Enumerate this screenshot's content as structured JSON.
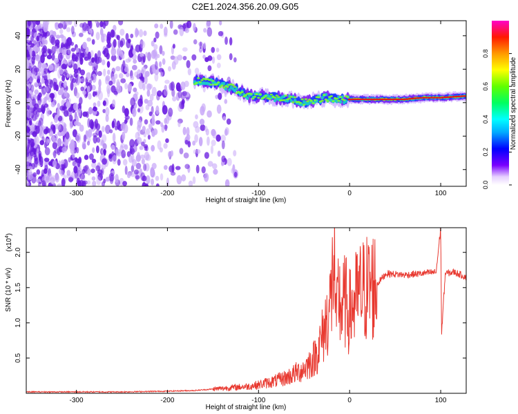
{
  "title": "C2E1.2024.356.20.09.G05",
  "chart_data": [
    {
      "type": "heatmap",
      "xlabel": "Height of straight line (km)",
      "ylabel": "Frequency (Hz)",
      "xlim": [
        -355,
        128
      ],
      "ylim": [
        -50,
        49
      ],
      "xticks": [
        -300,
        -200,
        -100,
        0,
        100
      ],
      "yticks": [
        -40,
        -20,
        0,
        20,
        40
      ],
      "colorbar": {
        "label": "Normalized spectral amplitude",
        "range": [
          0,
          1
        ],
        "ticks": [
          "0.0",
          "0.2",
          "0.4",
          "0.6",
          "0.8"
        ]
      },
      "colors": {
        "noise_strong": "#6a1be0",
        "noise_weak": "#c8a8f8",
        "signal_peak": "#e41a1a"
      },
      "ridge": {
        "x": [
          -170,
          -150,
          -135,
          -125,
          -110,
          -95,
          -80,
          -65,
          -50,
          -35,
          -25,
          -15,
          0,
          20,
          40,
          60,
          80,
          100,
          128
        ],
        "y": [
          13,
          12,
          10,
          8,
          4,
          4,
          3,
          2,
          0,
          2,
          3,
          2,
          2,
          2,
          2,
          2,
          3,
          3,
          4
        ]
      }
    },
    {
      "type": "line",
      "xlabel": "Height of straight line (km)",
      "ylabel": "SNR (10 * v/v)",
      "y_multiplier": "(x10",
      "y_multiplier_exp": "4",
      "xlim": [
        -355,
        128
      ],
      "ylim": [
        0,
        2.35
      ],
      "xticks": [
        -300,
        -200,
        -100,
        0,
        100
      ],
      "yticks": [
        "0.5",
        "1.0",
        "1.5",
        "2.0"
      ],
      "color": "#e8382f",
      "series": [
        {
          "x": [
            -355,
            -300,
            -250,
            -200,
            -170,
            -150,
            -130,
            -110,
            -100,
            -90,
            -80,
            -70,
            -60,
            -50,
            -40,
            -35,
            -30,
            -25,
            -20,
            -17,
            -15,
            -12,
            -10,
            -5,
            0,
            10,
            20,
            30,
            40,
            60,
            80,
            95,
            100,
            101,
            105,
            115,
            128
          ],
          "y": [
            0.02,
            0.02,
            0.02,
            0.03,
            0.04,
            0.06,
            0.08,
            0.1,
            0.12,
            0.15,
            0.18,
            0.22,
            0.28,
            0.35,
            0.48,
            0.6,
            0.8,
            1.05,
            1.35,
            2.05,
            0.9,
            1.45,
            1.2,
            1.3,
            1.15,
            1.4,
            1.5,
            1.55,
            1.7,
            1.68,
            1.7,
            1.72,
            2.35,
            0.85,
            1.7,
            1.72,
            1.65
          ]
        }
      ]
    }
  ]
}
